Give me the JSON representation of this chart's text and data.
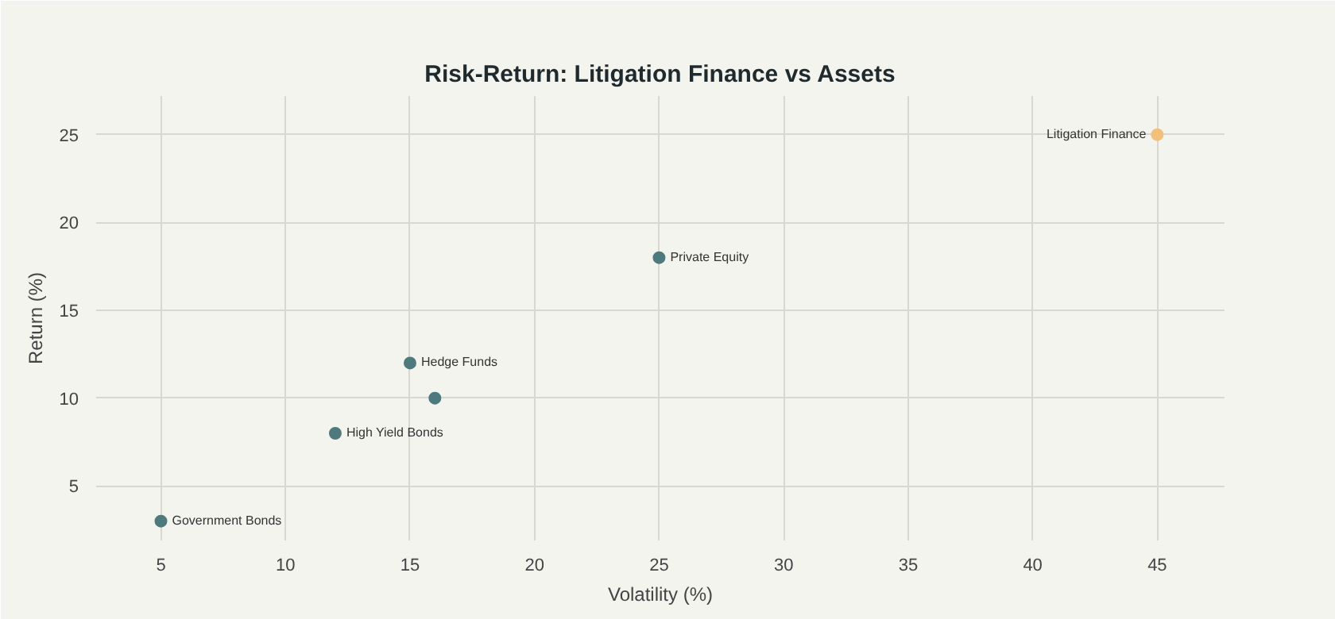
{
  "chart_data": {
    "type": "scatter",
    "title": "Risk-Return: Litigation Finance vs Assets",
    "xlabel": "Volatility (%)",
    "ylabel": "Return (%)",
    "x": [
      5,
      12,
      15,
      16,
      25,
      45
    ],
    "values": [
      3,
      8,
      12,
      10,
      18,
      25
    ],
    "colors": [
      "#4f7a7d",
      "#4f7a7d",
      "#4f7a7d",
      "#4f7a7d",
      "#4f7a7d",
      "#f3c07c"
    ],
    "marker": "circle",
    "grid": true,
    "xlim": [
      2.4,
      47.7
    ],
    "xticks": [
      5,
      10,
      15,
      20,
      25,
      30,
      35,
      40,
      45
    ],
    "ylim": [
      1.9,
      27.2
    ],
    "yticks": [
      5,
      10,
      15,
      20,
      25
    ],
    "annotations": [
      {
        "text": "Government Bonds",
        "x": 5,
        "y": 3
      },
      {
        "text": "High Yield Bonds",
        "x": 12,
        "y": 8
      },
      {
        "text": "Hedge Funds",
        "x": 15,
        "y": 12
      },
      {
        "text": "Private Equity",
        "x": 25,
        "y": 18
      },
      {
        "text": "Litigation Finance",
        "x": 45,
        "y": 25
      }
    ]
  }
}
